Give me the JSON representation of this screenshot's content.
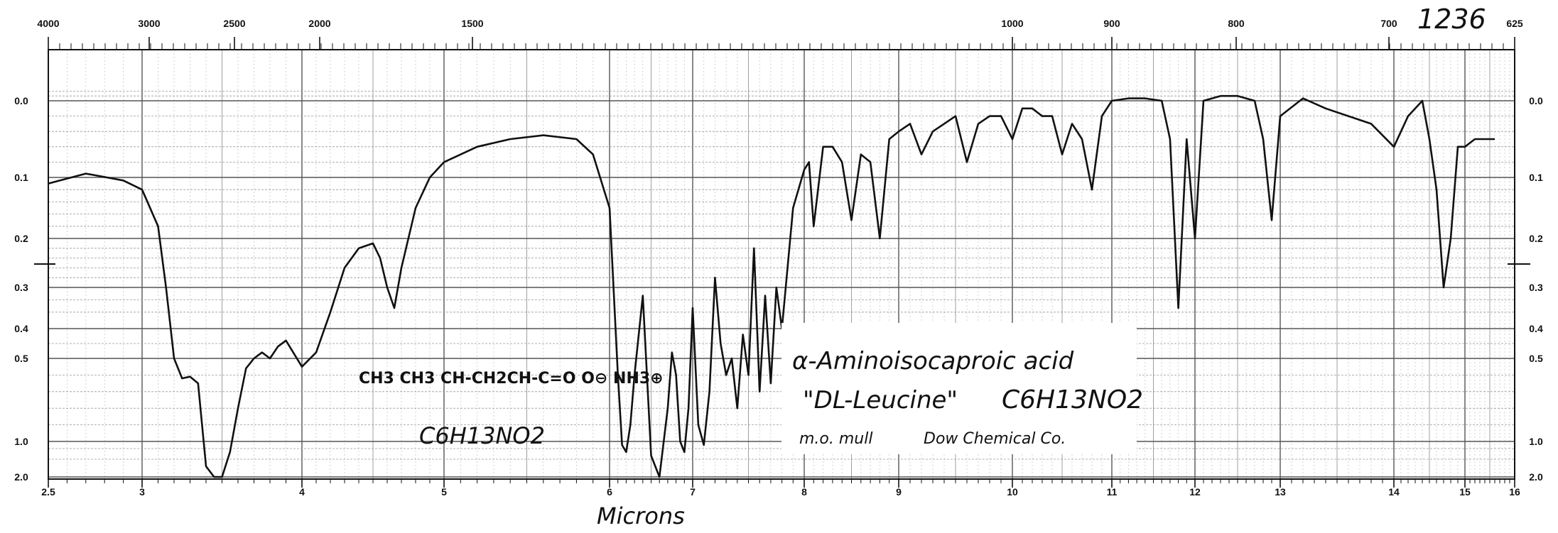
{
  "chart_data": {
    "type": "line",
    "title": "",
    "xlabel": "Microns",
    "ylabel": "",
    "x_top_tick_labels": [
      "4000",
      "3000",
      "2500",
      "2000",
      "1500",
      "1000",
      "900",
      "800",
      "700",
      "625"
    ],
    "x_bottom_tick_labels": [
      "2.5",
      "3",
      "4",
      "5",
      "6",
      "7",
      "8",
      "9",
      "10",
      "11",
      "12",
      "13",
      "14",
      "15",
      "16"
    ],
    "y_tick_labels": [
      "0.0",
      "0.1",
      "0.2",
      "0.3",
      "0.4",
      "0.5",
      "1.0",
      "2.0"
    ],
    "y_tick_labels_right": [
      "0.0",
      "0.1",
      "0.2",
      "0.3",
      "0.4",
      "0.5",
      "1.0",
      "2.0"
    ],
    "x_range": [
      2.5,
      16
    ],
    "y_range": [
      0.0,
      2.0
    ],
    "y_scale": "absorbance (non-linear)",
    "grid": true,
    "annotations": {
      "spectrum_number": "1236",
      "compound_name": "α-Aminoisocaproic acid",
      "common_name": "\"DL-Leucine\"",
      "molecular_formula": "C6H13NO2",
      "sample_prep": "m.o. mull",
      "source": "Dow Chemical Co.",
      "structure_label": "CH3 CH3 CH-CH2CH-C=O O⊖ NH3⊕",
      "structure_formula": "C6H13NO2"
    },
    "series": [
      {
        "x": [
          2.5,
          2.7,
          2.9,
          3.0,
          3.1,
          3.15,
          3.2,
          3.25,
          3.3,
          3.35,
          3.4,
          3.45,
          3.5,
          3.55,
          3.6,
          3.65,
          3.7,
          3.75,
          3.8,
          3.85,
          3.9,
          4.0,
          4.1,
          4.2,
          4.3,
          4.4,
          4.5,
          4.55,
          4.6,
          4.65,
          4.7,
          4.8,
          4.9,
          5.0,
          5.2,
          5.4,
          5.6,
          5.8,
          5.9,
          6.0,
          6.1,
          6.15,
          6.2,
          6.25,
          6.3,
          6.4,
          6.5,
          6.6,
          6.7,
          6.75,
          6.8,
          6.85,
          6.9,
          6.95,
          7.0,
          7.05,
          7.1,
          7.15,
          7.2,
          7.25,
          7.3,
          7.35,
          7.4,
          7.45,
          7.5,
          7.55,
          7.6,
          7.65,
          7.7,
          7.75,
          7.8,
          7.9,
          8.0,
          8.05,
          8.1,
          8.2,
          8.3,
          8.4,
          8.5,
          8.6,
          8.7,
          8.8,
          8.9,
          9.0,
          9.1,
          9.2,
          9.3,
          9.4,
          9.5,
          9.6,
          9.7,
          9.8,
          9.9,
          10.0,
          10.1,
          10.2,
          10.3,
          10.4,
          10.5,
          10.6,
          10.7,
          10.8,
          10.9,
          11.0,
          11.2,
          11.4,
          11.6,
          11.7,
          11.8,
          11.9,
          12.0,
          12.1,
          12.3,
          12.5,
          12.7,
          12.8,
          12.9,
          13.0,
          13.2,
          13.4,
          13.6,
          13.8,
          14.0,
          14.2,
          14.4,
          14.5,
          14.6,
          14.7,
          14.8,
          14.9,
          15.0,
          15.2,
          15.6
        ],
        "y": [
          0.11,
          0.095,
          0.105,
          0.12,
          0.18,
          0.3,
          0.5,
          0.62,
          0.61,
          0.65,
          1.7,
          2.0,
          2.0,
          1.3,
          0.8,
          0.56,
          0.5,
          0.48,
          0.5,
          0.46,
          0.44,
          0.55,
          0.48,
          0.36,
          0.26,
          0.22,
          0.21,
          0.24,
          0.3,
          0.35,
          0.26,
          0.15,
          0.1,
          0.08,
          0.06,
          0.05,
          0.045,
          0.05,
          0.07,
          0.15,
          0.6,
          1.1,
          1.3,
          0.9,
          0.6,
          0.32,
          1.4,
          2.0,
          0.8,
          0.48,
          0.6,
          1.0,
          1.3,
          0.8,
          0.35,
          0.9,
          1.1,
          0.7,
          0.28,
          0.45,
          0.6,
          0.5,
          0.8,
          0.42,
          0.6,
          0.22,
          0.7,
          0.32,
          0.65,
          0.3,
          0.4,
          0.15,
          0.09,
          0.08,
          0.18,
          0.06,
          0.06,
          0.08,
          0.17,
          0.07,
          0.08,
          0.2,
          0.05,
          0.04,
          0.03,
          0.07,
          0.04,
          0.03,
          0.02,
          0.08,
          0.03,
          0.02,
          0.02,
          0.05,
          0.01,
          0.01,
          0.02,
          0.02,
          0.07,
          0.03,
          0.05,
          0.12,
          0.02,
          0.0,
          -0.01,
          -0.01,
          0.0,
          0.05,
          0.35,
          0.05,
          0.2,
          0.0,
          -0.02,
          -0.02,
          0.0,
          0.05,
          0.17,
          0.02,
          -0.01,
          0.01,
          0.02,
          0.03,
          0.06,
          0.02,
          0.0,
          0.05,
          0.12,
          0.3,
          0.2,
          0.06,
          0.06,
          0.05,
          0.05
        ]
      }
    ]
  }
}
